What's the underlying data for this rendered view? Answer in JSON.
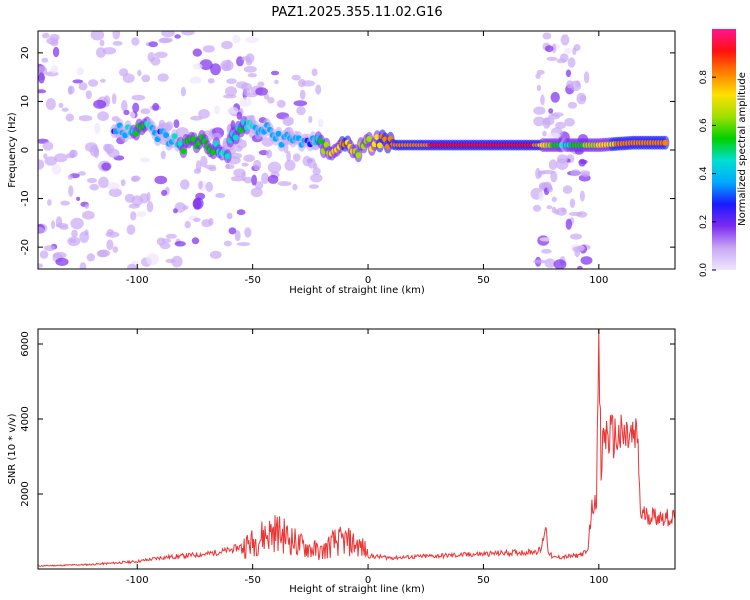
{
  "figure_title": "PAZ1.2025.355.11.02.G16",
  "chart_data": [
    {
      "type": "heatmap",
      "title": "PAZ1.2025.355.11.02.G16",
      "xlabel": "Height of straight line (km)",
      "ylabel": "Frequency (Hz)",
      "xlim": [
        -143,
        133
      ],
      "ylim": [
        -24.5,
        24.5
      ],
      "xticks": [
        -100,
        -50,
        0,
        50,
        100
      ],
      "xtick_labels": [
        "-100",
        "-50",
        "0",
        "50",
        "100"
      ],
      "yticks": [
        20,
        10,
        0,
        -10,
        -20
      ],
      "ytick_labels": [
        "20",
        "10",
        "0",
        "-10",
        "-20"
      ],
      "colorbar": {
        "label": "Normalized spectral amplitude",
        "range": [
          0,
          1
        ],
        "ticks": [
          0.0,
          0.2,
          0.4,
          0.6,
          0.8
        ],
        "tick_labels": [
          "0.0",
          "0.2",
          "0.4",
          "0.6",
          "0.8"
        ],
        "colormap": [
          "#f0e6ff",
          "#c9a8f5",
          "#7c2bf0",
          "#1a1aff",
          "#00aaff",
          "#00e0d0",
          "#00d000",
          "#9ee000",
          "#ffe000",
          "#ff8000",
          "#ff1010",
          "#ff1493"
        ]
      },
      "ridge": [
        {
          "x": -110,
          "y": 4,
          "a": 0.3
        },
        {
          "x": -98,
          "y": 5,
          "a": 0.55
        },
        {
          "x": -90,
          "y": 3,
          "a": 0.3
        },
        {
          "x": -80,
          "y": 1,
          "a": 0.5
        },
        {
          "x": -72,
          "y": 2,
          "a": 0.55
        },
        {
          "x": -62,
          "y": -1,
          "a": 0.45
        },
        {
          "x": -55,
          "y": 5,
          "a": 0.5
        },
        {
          "x": -45,
          "y": 4,
          "a": 0.35
        },
        {
          "x": -35,
          "y": 2,
          "a": 0.4
        },
        {
          "x": -25,
          "y": 2,
          "a": 0.3
        },
        {
          "x": -18,
          "y": 0,
          "a": 0.65
        },
        {
          "x": -10,
          "y": 1,
          "a": 0.8
        },
        {
          "x": -3,
          "y": 0,
          "a": 0.6
        },
        {
          "x": 4,
          "y": 2,
          "a": 0.75
        },
        {
          "x": 12,
          "y": 1,
          "a": 0.85
        },
        {
          "x": 25,
          "y": 1,
          "a": 0.85
        },
        {
          "x": 40,
          "y": 1,
          "a": 0.95
        },
        {
          "x": 55,
          "y": 1,
          "a": 0.95
        },
        {
          "x": 70,
          "y": 1,
          "a": 0.9
        },
        {
          "x": 85,
          "y": 1,
          "a": 0.45
        },
        {
          "x": 100,
          "y": 1,
          "a": 0.7
        },
        {
          "x": 115,
          "y": 1.5,
          "a": 0.85
        },
        {
          "x": 130,
          "y": 1.5,
          "a": 0.8
        }
      ]
    },
    {
      "type": "line",
      "xlabel": "Height of straight line (km)",
      "ylabel": "SNR (10 * v/v)",
      "xlim": [
        -143,
        133
      ],
      "ylim": [
        0,
        6400
      ],
      "xticks": [
        -100,
        -50,
        0,
        50,
        100
      ],
      "xtick_labels": [
        "-100",
        "-50",
        "0",
        "50",
        "100"
      ],
      "yticks": [
        2000,
        4000,
        6000
      ],
      "ytick_labels": [
        "2000",
        "4000",
        "6000"
      ],
      "line_color": "#ee3333",
      "series": [
        {
          "name": "SNR",
          "x": [
            -143,
            -120,
            -100,
            -90,
            -80,
            -70,
            -60,
            -50,
            -45,
            -40,
            -35,
            -30,
            -25,
            -20,
            -15,
            -10,
            -5,
            -1,
            0,
            10,
            30,
            50,
            60,
            70,
            75,
            77,
            78,
            80,
            90,
            95,
            97,
            99,
            100,
            101,
            102,
            104,
            108,
            113,
            117,
            118,
            120,
            125,
            133
          ],
          "y": [
            80,
            120,
            200,
            300,
            350,
            400,
            500,
            700,
            900,
            1000,
            850,
            650,
            550,
            450,
            700,
            750,
            650,
            500,
            350,
            300,
            350,
            400,
            430,
            450,
            500,
            1200,
            500,
            300,
            350,
            450,
            1600,
            2000,
            6000,
            2500,
            3600,
            3550,
            3500,
            3500,
            3450,
            1450,
            1450,
            1400,
            1350
          ]
        }
      ]
    }
  ]
}
